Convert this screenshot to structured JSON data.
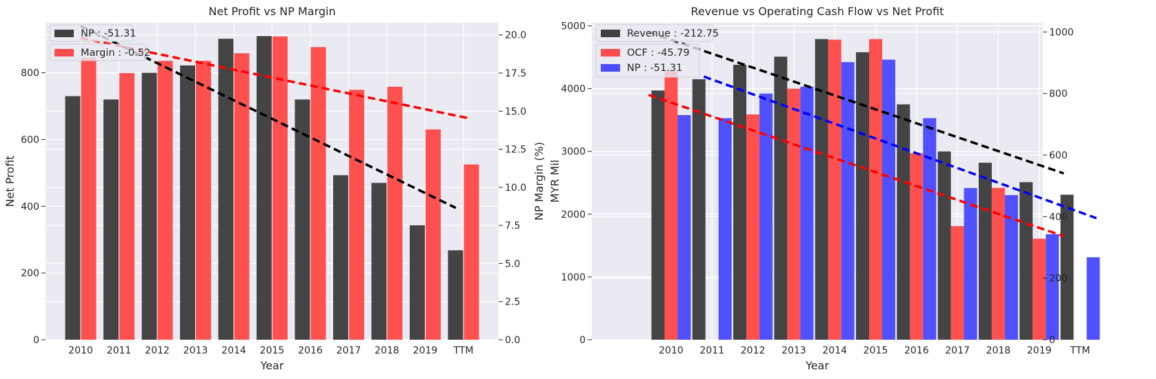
{
  "chart_data": [
    {
      "type": "bar",
      "title": "Net Profit vs NP Margin",
      "xlabel": "Year",
      "ylabel": "Net Profit",
      "y2label": "NP Margin (%)",
      "categories": [
        "2010",
        "2011",
        "2012",
        "2013",
        "2014",
        "2015",
        "2016",
        "2017",
        "2018",
        "2019",
        "TTM"
      ],
      "ylim": [
        0,
        950
      ],
      "y2lim": [
        0,
        20.8
      ],
      "yticks": [
        "0",
        "200",
        "400",
        "600",
        "800"
      ],
      "y2ticks": [
        "0.0",
        "2.5",
        "5.0",
        "7.5",
        "10.0",
        "12.5",
        "15.0",
        "17.5",
        "20.0"
      ],
      "grid": true,
      "legend": "top-left",
      "series": [
        {
          "name": "NP : -51.31",
          "axis": "left",
          "color": "#404040",
          "values": [
            730,
            720,
            800,
            822,
            902,
            910,
            720,
            493,
            470,
            343,
            268
          ]
        },
        {
          "name": "Margin : -0.52",
          "axis": "right",
          "color": "#ff4d4d",
          "values": [
            18.5,
            17.5,
            18.3,
            18.3,
            18.8,
            19.9,
            19.2,
            16.4,
            16.6,
            13.8,
            11.5
          ]
        }
      ],
      "trendlines": [
        {
          "series": "NP",
          "axis": "left",
          "color": "#000000",
          "from": [
            0,
            940
          ],
          "to": [
            9.8,
            395
          ]
        },
        {
          "series": "Margin",
          "axis": "right",
          "color": "#ff0000",
          "from": [
            0,
            19.8
          ],
          "to": [
            10.2,
            14.5
          ]
        }
      ]
    },
    {
      "type": "bar",
      "title": "Revenue vs Operating Cash Flow vs Net Profit",
      "xlabel": "Year",
      "ylabel": "MYR Mil",
      "categories": [
        "2010",
        "2011",
        "2012",
        "2013",
        "2014",
        "2015",
        "2016",
        "2017",
        "2018",
        "2019",
        "TTM"
      ],
      "ylim": [
        0,
        5050
      ],
      "y2lim": [
        0,
        1030
      ],
      "yticks": [
        "0",
        "1000",
        "2000",
        "3000",
        "4000",
        "5000"
      ],
      "y2ticks": [
        "0",
        "200",
        "400",
        "600",
        "800",
        "1000"
      ],
      "grid": true,
      "legend": "top-left",
      "series": [
        {
          "name": "Revenue : -212.75",
          "axis": "left",
          "color": "#404040",
          "values": [
            3970,
            4150,
            4380,
            4510,
            4790,
            4580,
            3750,
            3000,
            2820,
            2510,
            2310
          ]
        },
        {
          "name": "OCF : -45.79",
          "axis": "left",
          "color": "#ff4d4d",
          "values": [
            4280,
            0,
            3590,
            4000,
            4780,
            4790,
            2970,
            1810,
            2420,
            1610,
            0
          ]
        },
        {
          "name": "NP : -51.31",
          "axis": "right",
          "color": "#4d4dff",
          "values": [
            730,
            720,
            800,
            822,
            902,
            910,
            720,
            493,
            470,
            343,
            268
          ]
        }
      ],
      "trendlines": [
        {
          "series": "Revenue",
          "axis": "left",
          "color": "#000000",
          "from": [
            -0.55,
            4900
          ],
          "to": [
            9.6,
            2650
          ]
        },
        {
          "series": "OCF",
          "axis": "left",
          "color": "#ff0000",
          "from": [
            -0.55,
            3900
          ],
          "to": [
            9.6,
            1650
          ]
        },
        {
          "series": "NP",
          "axis": "right",
          "color": "#0000ff",
          "from": [
            0.8,
            855
          ],
          "to": [
            10.4,
            395
          ]
        }
      ]
    }
  ]
}
